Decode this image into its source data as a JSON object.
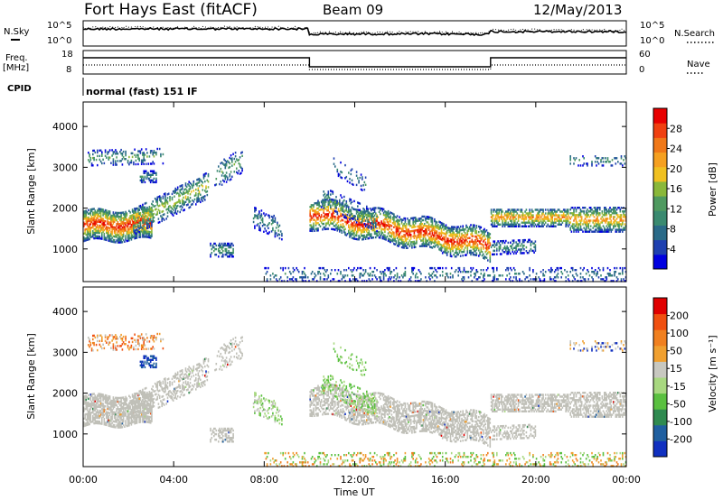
{
  "header": {
    "station": "Fort Hays East (fitACF)",
    "beam": "Beam 09",
    "date": "12/May/2013"
  },
  "top_strips": {
    "nsky_label": "N.Sky",
    "nsky_ticks": [
      "10^5",
      "10^0"
    ],
    "nsearch_label": "N.Search",
    "nsearch_ticks": [
      "10^5",
      "10^0"
    ],
    "freq_label": "Freq.",
    "freq_unit": "[MHz]",
    "freq_ticks": [
      "18",
      "8"
    ],
    "nave_label": "Nave",
    "nave_ticks": [
      "60",
      "0"
    ],
    "cpid_label": "CPID",
    "cpid_text": "normal (fast) 151 IF"
  },
  "colors": {
    "power_scale": [
      "#0000e0",
      "#1e40b0",
      "#2a6a88",
      "#3a8a70",
      "#4f9a60",
      "#8ab83a",
      "#f0c020",
      "#f5a020",
      "#f07818",
      "#f04010",
      "#e80000"
    ],
    "velocity_scale": [
      "#1030c0",
      "#1f5fa0",
      "#2f8a50",
      "#5ac040",
      "#a8d880",
      "#c8c8c0",
      "#f0a030",
      "#f08020",
      "#f05010",
      "#e00000"
    ],
    "ground_scatter": "#c0c0b8"
  },
  "chart_data": [
    {
      "type": "heatmap",
      "name": "power-panel",
      "ylabel": "Slant Range [km]",
      "yticks": [
        "4000",
        "3000",
        "2000",
        "1000"
      ],
      "ylim": [
        200,
        4600
      ],
      "colorbar_label": "Power [dB]",
      "colorbar_ticks": [
        "28",
        "24",
        "20",
        "16",
        "12",
        "8",
        "4"
      ],
      "colorbar_range": [
        0,
        32
      ]
    },
    {
      "type": "heatmap",
      "name": "velocity-panel",
      "ylabel": "Slant Range [km]",
      "yticks": [
        "4000",
        "3000",
        "2000",
        "1000"
      ],
      "ylim": [
        200,
        4600
      ],
      "colorbar_label": "Velocity [m s⁻¹]",
      "colorbar_ticks": [
        "200",
        "100",
        "50",
        "15",
        "-15",
        "-50",
        "-100",
        "-200"
      ]
    }
  ],
  "x_axis": {
    "label": "Time UT",
    "ticks": [
      "00:00",
      "04:00",
      "08:00",
      "12:00",
      "16:00",
      "20:00",
      "00:00"
    ]
  }
}
